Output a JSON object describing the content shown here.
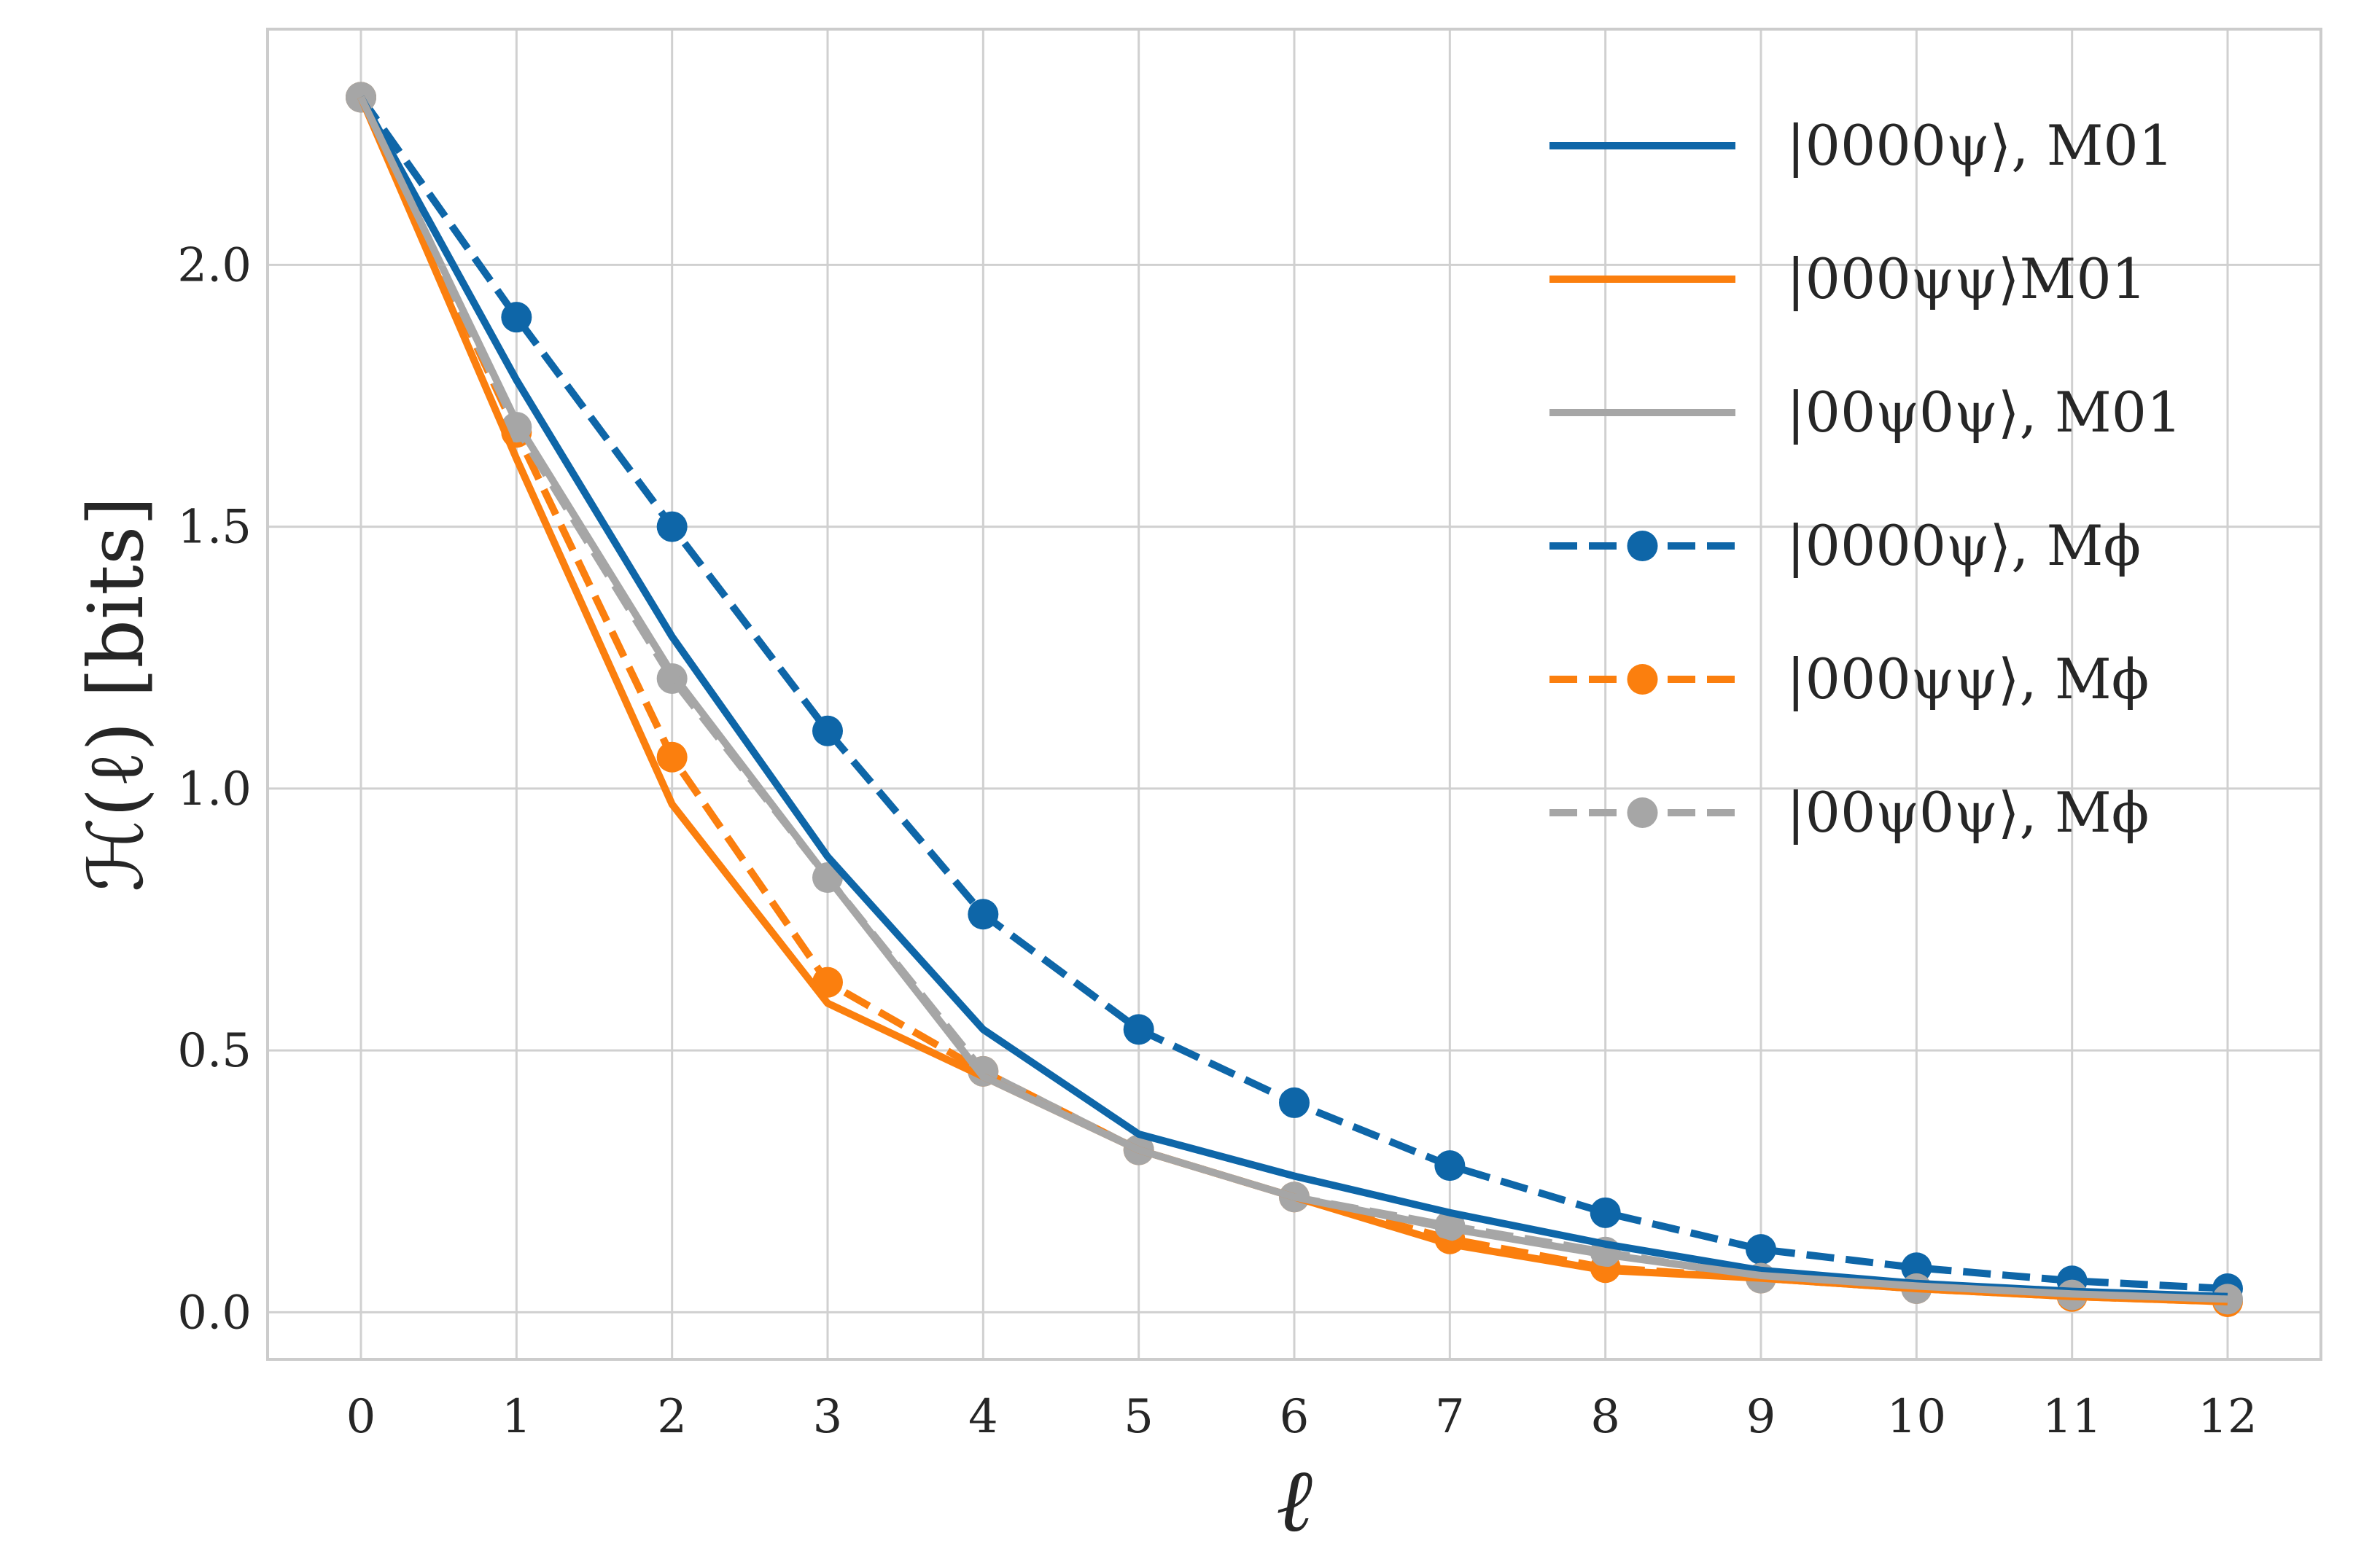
{
  "chart_data": {
    "type": "line",
    "x": [
      0,
      1,
      2,
      3,
      4,
      5,
      6,
      7,
      8,
      9,
      10,
      11,
      12
    ],
    "xlabel": "ℓ",
    "ylabel": "ℋ(ℓ) [bits]",
    "xlim": [
      -0.6,
      12.6
    ],
    "ylim": [
      -0.09,
      2.45
    ],
    "xticks": [
      "0",
      "1",
      "2",
      "3",
      "4",
      "5",
      "6",
      "7",
      "8",
      "9",
      "10",
      "11",
      "12"
    ],
    "yticks": [
      "0.0",
      "0.5",
      "1.0",
      "1.5",
      "2.0"
    ],
    "grid": true,
    "legend_position": "top-right",
    "series": [
      {
        "name": "|0000ψ⟩, M01",
        "color": "#0e66a8",
        "style": "solid",
        "markers": false,
        "values": [
          2.32,
          1.78,
          1.29,
          0.87,
          0.54,
          0.34,
          0.26,
          0.19,
          0.13,
          0.08,
          0.055,
          0.04,
          0.03
        ]
      },
      {
        "name": "|000ψψ⟩M01",
        "color": "#fb7f0e",
        "style": "solid",
        "markers": false,
        "values": [
          2.32,
          1.63,
          0.97,
          0.59,
          0.45,
          0.31,
          0.22,
          0.13,
          0.08,
          0.065,
          0.045,
          0.03,
          0.02
        ]
      },
      {
        "name": "|00ψ0ψ⟩, M01",
        "color": "#a6a6a6",
        "style": "solid",
        "markers": false,
        "values": [
          2.32,
          1.7,
          1.22,
          0.83,
          0.45,
          0.31,
          0.22,
          0.16,
          0.11,
          0.07,
          0.05,
          0.035,
          0.025
        ]
      },
      {
        "name": "|0000ψ⟩, Mϕ",
        "color": "#0e66a8",
        "style": "dashed",
        "markers": true,
        "values": [
          2.32,
          1.9,
          1.5,
          1.11,
          0.76,
          0.54,
          0.4,
          0.28,
          0.19,
          0.12,
          0.085,
          0.06,
          0.045
        ]
      },
      {
        "name": "|000ψψ⟩, Mϕ",
        "color": "#fb7f0e",
        "style": "dashed",
        "markers": true,
        "values": [
          2.32,
          1.68,
          1.06,
          0.63,
          0.46,
          0.31,
          0.22,
          0.14,
          0.085,
          0.065,
          0.045,
          0.03,
          0.02
        ]
      },
      {
        "name": "|00ψ0ψ⟩, Mϕ",
        "color": "#a6a6a6",
        "style": "dashed",
        "markers": true,
        "values": [
          2.32,
          1.69,
          1.21,
          0.83,
          0.46,
          0.31,
          0.22,
          0.165,
          0.115,
          0.065,
          0.045,
          0.033,
          0.025
        ]
      }
    ]
  }
}
